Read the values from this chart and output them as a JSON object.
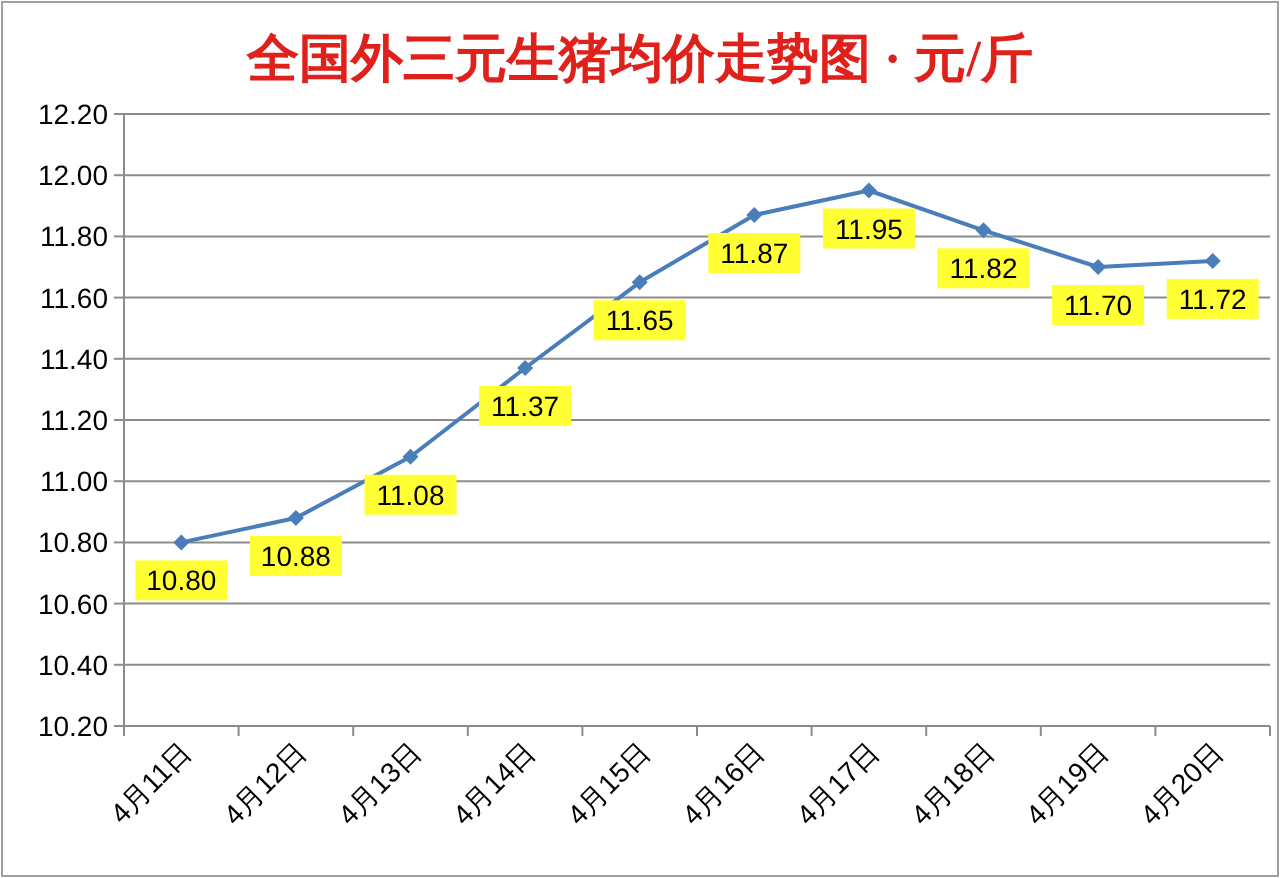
{
  "chart_data": {
    "type": "line",
    "title": "全国外三元生猪均价走势图 · 元/斤",
    "categories": [
      "4月11日",
      "4月12日",
      "4月13日",
      "4月14日",
      "4月15日",
      "4月16日",
      "4月17日",
      "4月18日",
      "4月19日",
      "4月20日"
    ],
    "series": [
      {
        "color": "#4a7ebb",
        "values": [
          10.8,
          10.88,
          11.08,
          11.37,
          11.65,
          11.87,
          11.95,
          11.82,
          11.7,
          11.72
        ],
        "value_labels": [
          "10.80",
          "10.88",
          "11.08",
          "11.37",
          "11.65",
          "11.87",
          "11.95",
          "11.82",
          "11.70",
          "11.72"
        ]
      }
    ],
    "ylim": [
      10.2,
      12.2
    ],
    "yticks": [
      {
        "value": 10.2,
        "label": "10.20"
      },
      {
        "value": 10.4,
        "label": "10.40"
      },
      {
        "value": 10.6,
        "label": "10.60"
      },
      {
        "value": 10.8,
        "label": "10.80"
      },
      {
        "value": 11.0,
        "label": "11.00"
      },
      {
        "value": 11.2,
        "label": "11.20"
      },
      {
        "value": 11.4,
        "label": "11.40"
      },
      {
        "value": 11.6,
        "label": "11.60"
      },
      {
        "value": 11.8,
        "label": "11.80"
      },
      {
        "value": 12.0,
        "label": "12.00"
      },
      {
        "value": 12.2,
        "label": "12.20"
      }
    ],
    "grid": "y",
    "marker": "diamond",
    "line_style": "solid"
  }
}
